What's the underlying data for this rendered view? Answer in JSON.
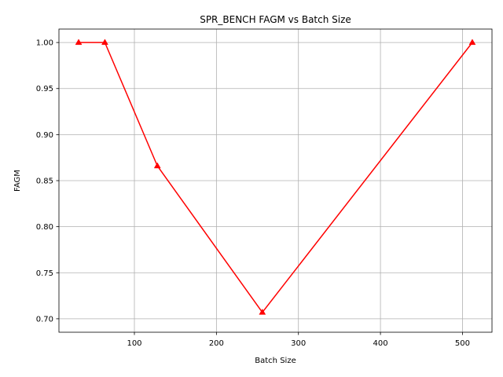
{
  "chart_data": {
    "type": "line",
    "title": "SPR_BENCH FAGM vs Batch Size",
    "xlabel": "Batch Size",
    "ylabel": "FAGM",
    "x": [
      32,
      64,
      128,
      256,
      512
    ],
    "series": [
      {
        "values": [
          1.0,
          1.0,
          0.866,
          0.707,
          1.0
        ],
        "color": "#ff0000",
        "marker": "triangle-up"
      }
    ],
    "xlim": [
      8,
      536
    ],
    "ylim": [
      0.6854,
      1.0146
    ],
    "xticks": [
      100,
      200,
      300,
      400,
      500
    ],
    "yticks": [
      0.7,
      0.75,
      0.8,
      0.85,
      0.9,
      0.95,
      1.0
    ],
    "xtick_labels": [
      "100",
      "200",
      "300",
      "400",
      "500"
    ],
    "ytick_labels": [
      "0.70",
      "0.75",
      "0.80",
      "0.85",
      "0.90",
      "0.95",
      "1.00"
    ],
    "grid": true,
    "legend": "none"
  }
}
